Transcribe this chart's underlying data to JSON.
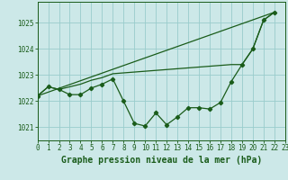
{
  "background_color": "#cce8e8",
  "grid_color": "#99cccc",
  "line_color": "#1a5c1a",
  "bottom_label": "Graphe pression niveau de la mer (hPa)",
  "xlim": [
    0,
    23
  ],
  "ylim": [
    1020.5,
    1025.8
  ],
  "yticks": [
    1021,
    1022,
    1023,
    1024,
    1025
  ],
  "xticks": [
    0,
    1,
    2,
    3,
    4,
    5,
    6,
    7,
    8,
    9,
    10,
    11,
    12,
    13,
    14,
    15,
    16,
    17,
    18,
    19,
    20,
    21,
    22,
    23
  ],
  "line_detailed": [
    [
      0,
      1022.2
    ],
    [
      1,
      1022.55
    ],
    [
      2,
      1022.45
    ],
    [
      3,
      1022.25
    ],
    [
      4,
      1022.25
    ],
    [
      5,
      1022.5
    ],
    [
      6,
      1022.65
    ],
    [
      7,
      1022.85
    ],
    [
      8,
      1022.0
    ],
    [
      9,
      1021.15
    ],
    [
      10,
      1021.05
    ],
    [
      11,
      1021.55
    ],
    [
      12,
      1021.1
    ],
    [
      13,
      1021.4
    ],
    [
      14,
      1021.75
    ],
    [
      15,
      1021.75
    ],
    [
      16,
      1021.7
    ],
    [
      17,
      1021.95
    ],
    [
      18,
      1022.75
    ],
    [
      19,
      1023.4
    ],
    [
      20,
      1024.0
    ],
    [
      21,
      1025.1
    ],
    [
      22,
      1025.4
    ]
  ],
  "line_upper": [
    [
      0,
      1022.2
    ],
    [
      1,
      1022.55
    ],
    [
      2,
      1022.45
    ],
    [
      3,
      1022.55
    ],
    [
      4,
      1022.65
    ],
    [
      5,
      1022.8
    ],
    [
      6,
      1022.9
    ],
    [
      7,
      1023.05
    ],
    [
      18,
      1023.4
    ],
    [
      19,
      1023.4
    ],
    [
      20,
      1024.0
    ],
    [
      21,
      1025.1
    ],
    [
      22,
      1025.4
    ]
  ],
  "line_diagonal": [
    [
      0,
      1022.2
    ],
    [
      22,
      1025.4
    ]
  ],
  "label_fontsize": 7,
  "tick_fontsize": 5.5
}
